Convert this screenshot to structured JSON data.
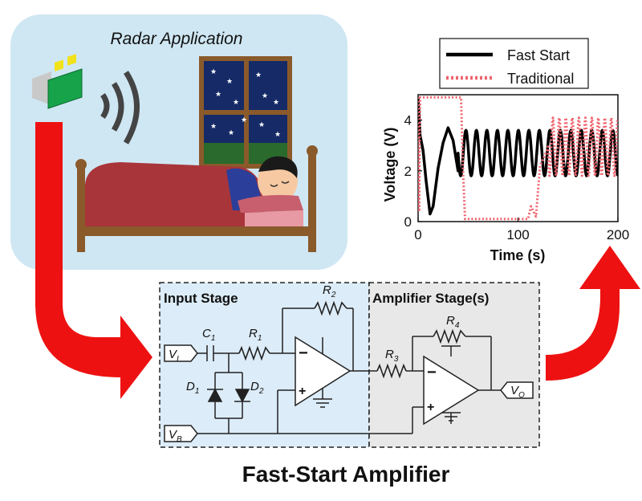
{
  "radar_panel": {
    "title": "Radar Application"
  },
  "chart_data": {
    "type": "line",
    "xlabel": "Time (s)",
    "ylabel": "Voltage (V)",
    "xlim": [
      0,
      200
    ],
    "ylim": [
      0,
      5
    ],
    "x_ticks": [
      "0",
      "100",
      "200"
    ],
    "y_ticks": [
      "0",
      "2",
      "4"
    ],
    "legend_position": "top",
    "grid": false,
    "series": [
      {
        "name": "Fast Start",
        "color": "#000000",
        "style": "solid",
        "x": [
          0,
          2,
          5,
          8,
          12,
          15,
          20,
          25,
          30,
          35,
          40
        ],
        "y": [
          4.9,
          3.4,
          2.8,
          1.6,
          0.3,
          0.6,
          2.1,
          3.1,
          3.7,
          3.2,
          2.0
        ],
        "oscillation": {
          "from": 40,
          "to": 200,
          "min": 1.8,
          "max": 3.6,
          "period": 10.5
        }
      },
      {
        "name": "Traditional",
        "color": "#f0646e",
        "style": "dotted",
        "x": [
          0,
          1,
          2,
          43,
          45,
          47,
          110,
          113,
          118,
          122,
          130
        ],
        "y": [
          4.9,
          0.4,
          4.9,
          4.9,
          2.0,
          0.1,
          0.1,
          0.6,
          0.2,
          2.2,
          2.9
        ],
        "oscillation": {
          "from": 130,
          "to": 200,
          "min": 1.8,
          "max": 4.1,
          "period": 6.5
        }
      }
    ]
  },
  "circuit": {
    "input_stage_label": "Input Stage",
    "amplifier_stage_label": "Amplifier Stage(s)",
    "components": {
      "c1": {
        "main": "C",
        "sub": "1"
      },
      "r1": {
        "main": "R",
        "sub": "1"
      },
      "r2": {
        "main": "R",
        "sub": "2"
      },
      "r3": {
        "main": "R",
        "sub": "3"
      },
      "r4": {
        "main": "R",
        "sub": "4"
      },
      "d1": {
        "main": "D",
        "sub": "1"
      },
      "d2": {
        "main": "D",
        "sub": "2"
      },
      "vi": {
        "main": "V",
        "sub": "I"
      },
      "vb": {
        "main": "V",
        "sub": "B"
      },
      "vo": {
        "main": "V",
        "sub": "O"
      }
    },
    "opamp_minus": "−",
    "opamp_plus": "+"
  },
  "caption": "Fast-Start Amplifier",
  "colors": {
    "radar_panel_bg": "#cfe7f3",
    "input_stage_bg": "#dcecf8",
    "amplifier_stage_bg": "#e8e8e8",
    "arrow_red": "#ee1111",
    "traditional_trace": "#f0646e",
    "fast_start_trace": "#000000"
  },
  "icons": [
    "radar-sensor-icon",
    "wireless-signal-icon",
    "night-window-icon",
    "moon-icon",
    "bed-icon",
    "sleeping-person-icon"
  ]
}
